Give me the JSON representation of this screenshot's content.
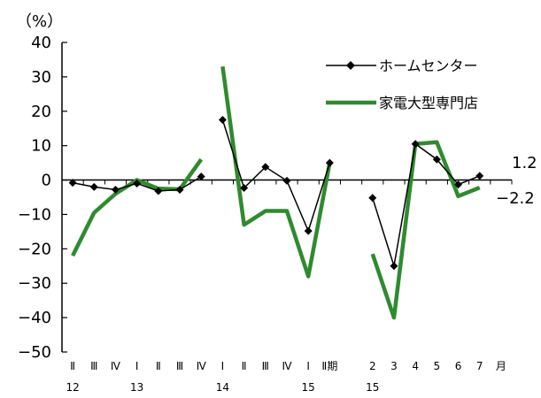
{
  "chart_data": {
    "type": "line",
    "ylabel": "（%）",
    "ylim": [
      -50,
      40
    ],
    "yticks": [
      40,
      30,
      20,
      10,
      0,
      -10,
      -20,
      -30,
      -40,
      -50
    ],
    "grid": false,
    "legend_position": "top-right",
    "x_categories": [
      "Ⅱ",
      "Ⅲ",
      "Ⅳ",
      "Ⅰ",
      "Ⅱ",
      "Ⅲ",
      "Ⅳ",
      "Ⅰ",
      "Ⅱ",
      "Ⅲ",
      "Ⅳ",
      "Ⅰ",
      "Ⅱ期",
      "",
      "2",
      "3",
      "4",
      "5",
      "6",
      "7",
      "月"
    ],
    "x_year_labels": [
      {
        "index": 0,
        "text": "12"
      },
      {
        "index": 3,
        "text": "13"
      },
      {
        "index": 7,
        "text": "14"
      },
      {
        "index": 11,
        "text": "15"
      },
      {
        "index": 14,
        "text": "15"
      }
    ],
    "series": [
      {
        "name": "ホームセンター",
        "color": "#000000",
        "marker": "diamond",
        "segments": [
          {
            "x": [
              0,
              1,
              2,
              3,
              4,
              5,
              6
            ],
            "y": [
              -0.8,
              -2,
              -2.8,
              -1,
              -3.2,
              -2.8,
              1
            ]
          },
          {
            "x": [
              7,
              8,
              9,
              10,
              11,
              12
            ],
            "y": [
              17.5,
              -2.3,
              3.8,
              -0.2,
              -14.8,
              5
            ]
          },
          {
            "x": [
              14,
              15,
              16,
              17,
              18,
              19
            ],
            "y": [
              -5.2,
              -25,
              10.5,
              6,
              -1.3,
              1.2
            ]
          }
        ]
      },
      {
        "name": "家電大型専門店",
        "color": "#2e8b2e",
        "marker": "none",
        "segments": [
          {
            "x": [
              0,
              1,
              2,
              3,
              4,
              5,
              6
            ],
            "y": [
              -22,
              -9.5,
              -4,
              0,
              -2.5,
              -2.7,
              6
            ]
          },
          {
            "x": [
              7,
              8,
              9,
              10,
              11,
              12
            ],
            "y": [
              33,
              -13,
              -9,
              -9,
              -28,
              5
            ]
          },
          {
            "x": [
              14,
              15,
              16,
              17,
              18,
              19
            ],
            "y": [
              -21.5,
              -40,
              10.5,
              11,
              -4.7,
              -2.2
            ]
          }
        ]
      }
    ],
    "end_labels": [
      {
        "series": "ホームセンター",
        "text": "1.2"
      },
      {
        "series": "家電大型専門店",
        "text": "−2.2"
      }
    ]
  }
}
